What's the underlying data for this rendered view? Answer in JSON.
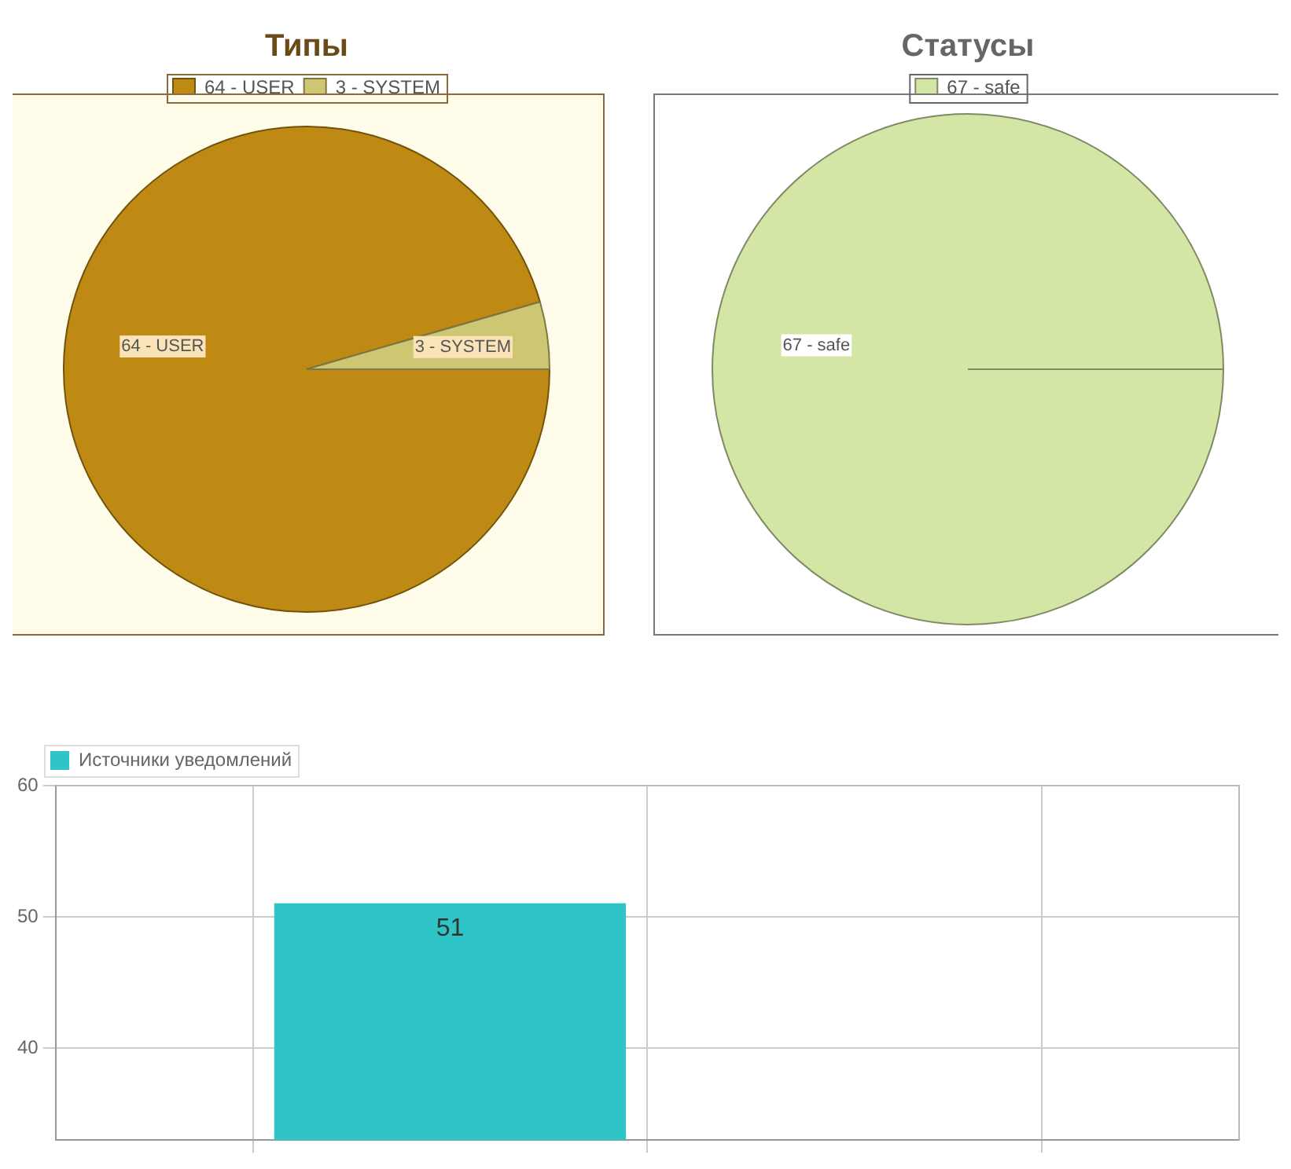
{
  "chart_data": [
    {
      "type": "pie",
      "title": "Типы",
      "categories": [
        "64 - USER",
        "3 - SYSTEM"
      ],
      "values": [
        64,
        3
      ],
      "colors": [
        "#bf8a14",
        "#cfc673"
      ],
      "value_labels": [
        "64 - USER",
        "3 - SYSTEM"
      ],
      "legend": "top"
    },
    {
      "type": "pie",
      "title": "Статусы",
      "categories": [
        "67 - safe"
      ],
      "values": [
        67
      ],
      "colors": [
        "#d3e6a6"
      ],
      "value_labels": [
        "67 - safe"
      ],
      "legend": "top"
    },
    {
      "type": "bar",
      "categories": [
        null,
        null,
        null,
        null
      ],
      "series": [
        {
          "name": "Источники уведомлений",
          "color": "#2ec4c8",
          "values": [
            null,
            51,
            null,
            null
          ]
        }
      ],
      "ylim": [
        33,
        60
      ],
      "yticks": [
        40,
        50,
        60
      ],
      "grid": true,
      "legend": "top left",
      "data_labels": true
    }
  ]
}
